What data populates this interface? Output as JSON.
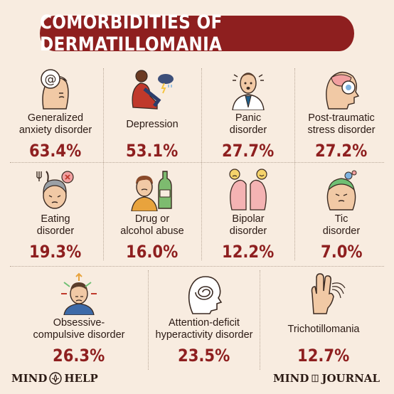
{
  "title": "COMORBIDITIES OF DERMATILLOMANIA",
  "colors": {
    "accent": "#8e1f1f",
    "background": "#f8ece0",
    "text": "#2b1a14"
  },
  "conditions": [
    {
      "label_lines": [
        "Generalized",
        "anxiety disorder"
      ],
      "percent": "63.4%",
      "icon": "anxious-face-icon"
    },
    {
      "label_lines": [
        "Depression"
      ],
      "percent": "53.1%",
      "icon": "sad-person-storm-icon"
    },
    {
      "label_lines": [
        "Panic",
        "disorder"
      ],
      "percent": "27.7%",
      "icon": "panicked-man-icon"
    },
    {
      "label_lines": [
        "Post-traumatic",
        "stress disorder"
      ],
      "percent": "27.2%",
      "icon": "head-brain-icon"
    },
    {
      "label_lines": [
        "Eating",
        "disorder"
      ],
      "percent": "19.3%",
      "icon": "fork-knife-head-icon"
    },
    {
      "label_lines": [
        "Drug or",
        "alcohol abuse"
      ],
      "percent": "16.0%",
      "icon": "bottle-person-icon"
    },
    {
      "label_lines": [
        "Bipolar",
        "disorder"
      ],
      "percent": "12.2%",
      "icon": "two-faces-icon"
    },
    {
      "label_lines": [
        "Tic",
        "disorder"
      ],
      "percent": "7.0%",
      "icon": "head-gears-icon"
    },
    {
      "label_lines": [
        "Obsessive-",
        "compulsive disorder"
      ],
      "percent": "26.3%",
      "icon": "confused-head-arrows-icon"
    },
    {
      "label_lines": [
        "Attention-deficit",
        "hyperactivity disorder"
      ],
      "percent": "23.5%",
      "icon": "spiral-head-icon"
    },
    {
      "label_lines": [
        "Trichotillomania"
      ],
      "percent": "12.7%",
      "icon": "hand-hair-icon"
    }
  ],
  "footer": {
    "left_logo_a": "MIND",
    "left_logo_b": "HELP",
    "right_logo_a": "MIND",
    "right_logo_b": "JOURNAL"
  }
}
